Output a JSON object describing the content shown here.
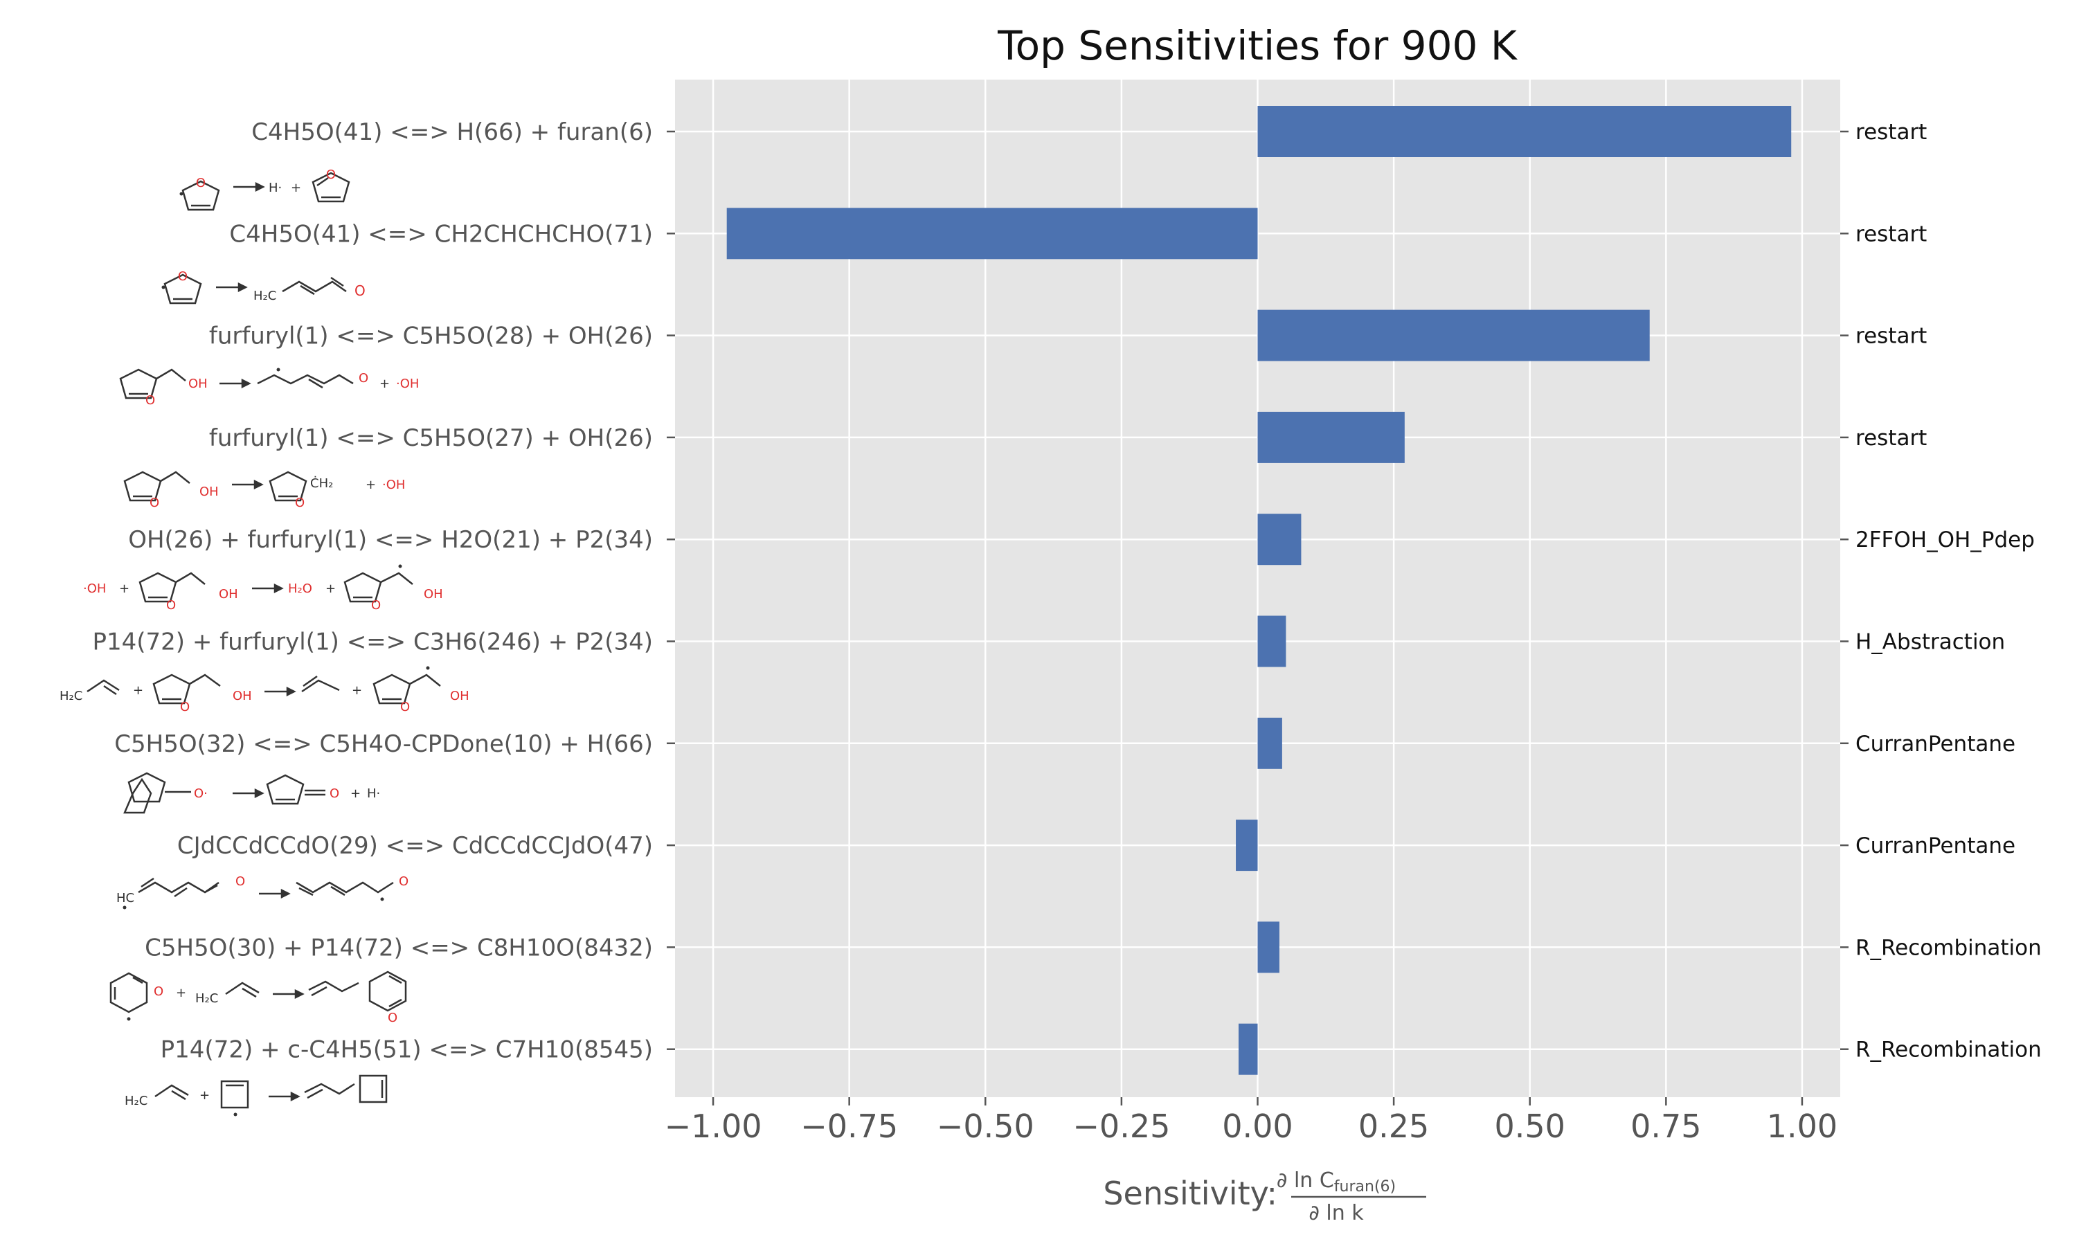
{
  "chart_data": {
    "type": "bar",
    "orientation": "horizontal",
    "title": "Top Sensitivities for 900 K",
    "xlabel_prefix": "Sensitivity:",
    "xlabel_numerator": "∂ ln C",
    "xlabel_numerator_sub": "furan(6)",
    "xlabel_denominator": "∂ ln k",
    "xlim": [
      -1.07,
      1.07
    ],
    "xticks": [
      -1.0,
      -0.75,
      -0.5,
      -0.25,
      0.0,
      0.25,
      0.5,
      0.75,
      1.0
    ],
    "xtick_labels": [
      "−1.00",
      "−0.75",
      "−0.50",
      "−0.25",
      "0.00",
      "0.25",
      "0.50",
      "0.75",
      "1.00"
    ],
    "grid": true,
    "bar_color": "#4c72b0",
    "background_color": "#e5e5e5",
    "categories": [
      "C4H5O(41) <=> H(66) + furan(6)",
      "C4H5O(41) <=> CH2CHCHCHO(71)",
      "furfuryl(1) <=> C5H5O(28) + OH(26)",
      "furfuryl(1) <=> C5H5O(27) + OH(26)",
      "OH(26) + furfuryl(1) <=> H2O(21) + P2(34)",
      "P14(72) + furfuryl(1) <=> C3H6(246) + P2(34)",
      "C5H5O(32) <=> C5H4O-CPDone(10) + H(66)",
      "CJdCCdCCdO(29) <=> CdCCdCCJdO(47)",
      "C5H5O(30) + P14(72) <=> C8H10O(8432)",
      "P14(72) + c-C4H5(51) <=> C7H10(8545)"
    ],
    "values": [
      0.98,
      -0.975,
      0.72,
      0.27,
      0.08,
      0.052,
      0.045,
      -0.04,
      0.04,
      -0.035
    ],
    "families": [
      "restart",
      "restart",
      "restart",
      "restart",
      "2FFOH_OH_Pdep",
      "H_Abstraction",
      "CurranPentane",
      "CurranPentane",
      "R_Recombination",
      "R_Recombination"
    ]
  },
  "structure_text": {
    "r1_h": "H·",
    "r2_h2c": "H₂C",
    "r2_o": "O",
    "r3_oh1": "OH",
    "r3_o2": "O",
    "r3_oh2": "·OH",
    "r4_oh1": "OH",
    "r4_ch2": "ĊH₂",
    "r4_oh2": "·OH",
    "r5_oh": "·OH",
    "r5_oh2": "OH",
    "r5_h2o": "H₂O",
    "r5_oh3": "OH",
    "r6_h2c": "H₂C",
    "r6_oh": "OH",
    "r6_oh2": "OH",
    "r7_o": "O·",
    "r7_o2": "O",
    "r7_h": "H·",
    "r8_hc": "HC",
    "r8_o": "O",
    "r8_o2": "O",
    "r9_h2c": "H₂C"
  }
}
